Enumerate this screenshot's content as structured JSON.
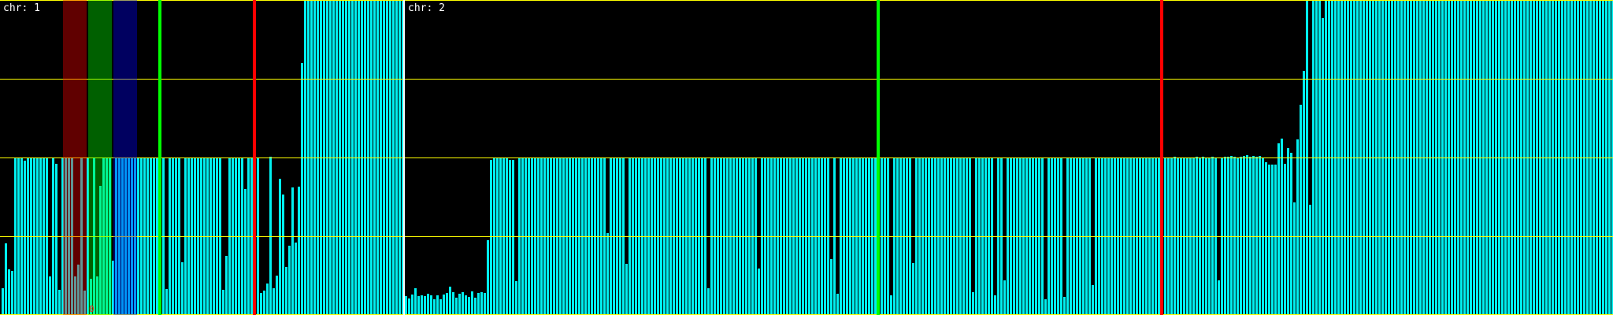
{
  "chart_data": {
    "type": "bar",
    "ylim": [
      0,
      4
    ],
    "yticks_grid": [
      0,
      1,
      2,
      3,
      4
    ],
    "grid": true,
    "colors": {
      "background": "#000000",
      "bar": "#00f0f0",
      "grid": "#ffff00",
      "separator": "#ffffff",
      "marker_green": "#00ff00",
      "marker_red": "#ff0000",
      "band_red": "#ff0000",
      "band_green": "#00ff00",
      "band_blue": "#0000ff"
    },
    "panels": [
      {
        "label": "chr: 1",
        "values": [
          0.34,
          0.91,
          0.58,
          0.56,
          2,
          2,
          2,
          1.96,
          2,
          2,
          2,
          2,
          2,
          2,
          2,
          0.49,
          2,
          1.92,
          0.32,
          2,
          2,
          2,
          2,
          0.49,
          0.64,
          2,
          0.31,
          2,
          0.46,
          2,
          0.49,
          1.64,
          2,
          2,
          2,
          0.69,
          2,
          2,
          2,
          2,
          2,
          2,
          2,
          2,
          2,
          2,
          2,
          2,
          2,
          2,
          2,
          2,
          0.33,
          2,
          2,
          2,
          2,
          0.67,
          2,
          2,
          2,
          2,
          2,
          2,
          2,
          2,
          2,
          2,
          2,
          2,
          0.32,
          0.75,
          2,
          2,
          2,
          2,
          2,
          1.6,
          2,
          2,
          2,
          2,
          0.28,
          0.31,
          0.4,
          2.01,
          0.34,
          0.5,
          1.73,
          1.53,
          0.61,
          0.88,
          1.62,
          0.92,
          1.63,
          3.2,
          4,
          4,
          4,
          4,
          4,
          4,
          4,
          4,
          4,
          4,
          4,
          4,
          4,
          4,
          4,
          4,
          4,
          4,
          4,
          4,
          4,
          4,
          4,
          4,
          4,
          4,
          4,
          4,
          4,
          4,
          4,
          4
        ],
        "bands": [
          {
            "color": "red",
            "from_bar": 20,
            "to_bar": 26
          },
          {
            "color": "green",
            "from_bar": 28,
            "to_bar": 34
          },
          {
            "color": "blue",
            "from_bar": 36,
            "to_bar": 42
          }
        ],
        "markers": [
          {
            "color": "green",
            "at_bar": 50
          },
          {
            "color": "red",
            "at_bar": 80
          }
        ],
        "annotation": {
          "text": "0",
          "at_bar": 28
        }
      },
      {
        "label": "chr: 2",
        "values": [
          0.24,
          0.21,
          0.26,
          0.34,
          0.24,
          0.25,
          0.24,
          0.27,
          0.25,
          0.2,
          0.25,
          0.2,
          0.26,
          0.28,
          0.36,
          0.29,
          0.22,
          0.27,
          0.29,
          0.25,
          0.23,
          0.3,
          0.22,
          0.28,
          0.29,
          0.28,
          0.95,
          1.97,
          2,
          2,
          2,
          2,
          2,
          1.97,
          1.97,
          0.43,
          2,
          2,
          2,
          2,
          2,
          2,
          2,
          2,
          2,
          2,
          2,
          2,
          2,
          2,
          2,
          2,
          2,
          2,
          2,
          2,
          2,
          2,
          2,
          2,
          2,
          2,
          2,
          2,
          1.04,
          2,
          2,
          2,
          2,
          2,
          0.65,
          2,
          2,
          2,
          2,
          2,
          2,
          2,
          2,
          2,
          2,
          2,
          2,
          2,
          2,
          2,
          2,
          2,
          2,
          2,
          2,
          2,
          2,
          2,
          2,
          2,
          0.34,
          2,
          2,
          2,
          2,
          2,
          2,
          2,
          2,
          2,
          2,
          2,
          2,
          2,
          2,
          2,
          0.59,
          2,
          2,
          2,
          2,
          2,
          2,
          2,
          2,
          2,
          2,
          2,
          2,
          2,
          2,
          2,
          2,
          2,
          2,
          2,
          2,
          2,
          2,
          0.71,
          2,
          0.27,
          2,
          2,
          2,
          2,
          2,
          2,
          2,
          2,
          2,
          2,
          2,
          2,
          2,
          2,
          2,
          2,
          0.25,
          2,
          2,
          2,
          2,
          2,
          2,
          0.66,
          2,
          2,
          2,
          2,
          2,
          2,
          2,
          2,
          2,
          2,
          2,
          2,
          2,
          2,
          2,
          2,
          2,
          2,
          0.29,
          2,
          2,
          2,
          2,
          2,
          2,
          0.25,
          2,
          2,
          0.44,
          2,
          2,
          2,
          2,
          2,
          2,
          2,
          2,
          2,
          2,
          2,
          2,
          0.2,
          2,
          2,
          2,
          2,
          2,
          0.23,
          2,
          2,
          2,
          2,
          2,
          2,
          2,
          2,
          0.38,
          2,
          2,
          2,
          2,
          2,
          2,
          2,
          2,
          2,
          2,
          2,
          2,
          2,
          2,
          2,
          2,
          2,
          2,
          2,
          2,
          2,
          2,
          2,
          2,
          2,
          2.01,
          2,
          2,
          2,
          2,
          2,
          2,
          2.01,
          2,
          2.01,
          2,
          2,
          2.01,
          2,
          0.44,
          2,
          2.01,
          2.01,
          2.02,
          2.01,
          2,
          2.01,
          2.02,
          2.03,
          2.01,
          2.02,
          2.01,
          2.02,
          1.99,
          1.94,
          1.91,
          1.91,
          1.91,
          2.18,
          2.24,
          1.92,
          2.12,
          2.06,
          1.43,
          2.23,
          2.67,
          3.1,
          4,
          1.4,
          4,
          4,
          4,
          3.77,
          4,
          4,
          4,
          4,
          4,
          4,
          4,
          4,
          4,
          4,
          4,
          4,
          4,
          4,
          4,
          4,
          4,
          4,
          4,
          4,
          4,
          4,
          4,
          4,
          4,
          4,
          4,
          4,
          4,
          4,
          4,
          4,
          4,
          4,
          4,
          4,
          4,
          4,
          4,
          4,
          4,
          4,
          4,
          4,
          4,
          4,
          4,
          4,
          4,
          4,
          4,
          4,
          4,
          4,
          4,
          4,
          4,
          4,
          4,
          4,
          4,
          4,
          4,
          4,
          4,
          4,
          4,
          4,
          4,
          4,
          4,
          4,
          4,
          4,
          4,
          4,
          4,
          4,
          4,
          4,
          4,
          4,
          4,
          4,
          4,
          4,
          4,
          4,
          4,
          4,
          4,
          4
        ],
        "bands": [],
        "markers": [
          {
            "color": "green",
            "at_bar": 150
          },
          {
            "color": "red",
            "at_bar": 240
          }
        ]
      }
    ]
  }
}
